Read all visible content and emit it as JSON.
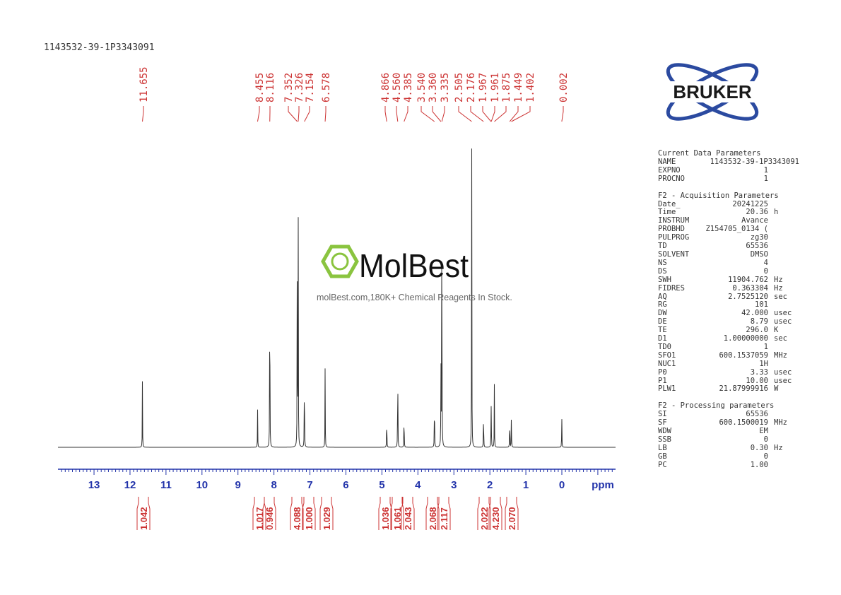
{
  "sample_name": "1143532-39-1P3343091",
  "logo": {
    "brand": "BRUKER",
    "color": "#2b4aa0"
  },
  "watermark": {
    "brand": "MolBest",
    "tagline": "molBest.com,180K+ Chemical Reagents In Stock.",
    "color": "#8ac43f"
  },
  "params": {
    "current": {
      "title": "Current Data Parameters",
      "rows": [
        [
          "NAME",
          "1143532-39-1P3343091",
          ""
        ],
        [
          "EXPNO",
          "1",
          ""
        ],
        [
          "PROCNO",
          "1",
          ""
        ]
      ]
    },
    "acq": {
      "title": "F2 - Acquisition Parameters",
      "rows": [
        [
          "Date_",
          "20241225",
          ""
        ],
        [
          "Time",
          "20.36",
          "h"
        ],
        [
          "INSTRUM",
          "Avance",
          ""
        ],
        [
          "PROBHD",
          "Z154705_0134 (",
          ""
        ],
        [
          "PULPROG",
          "zg30",
          ""
        ],
        [
          "TD",
          "65536",
          ""
        ],
        [
          "SOLVENT",
          "DMSO",
          ""
        ],
        [
          "NS",
          "4",
          ""
        ],
        [
          "DS",
          "0",
          ""
        ],
        [
          "SWH",
          "11904.762",
          "Hz"
        ],
        [
          "FIDRES",
          "0.363304",
          "Hz"
        ],
        [
          "AQ",
          "2.7525120",
          "sec"
        ],
        [
          "RG",
          "101",
          ""
        ],
        [
          "DW",
          "42.000",
          "usec"
        ],
        [
          "DE",
          "8.79",
          "usec"
        ],
        [
          "TE",
          "296.0",
          "K"
        ],
        [
          "D1",
          "1.00000000",
          "sec"
        ],
        [
          "TD0",
          "1",
          ""
        ],
        [
          "SFO1",
          "600.1537059",
          "MHz"
        ],
        [
          "NUC1",
          "1H",
          ""
        ],
        [
          "P0",
          "3.33",
          "usec"
        ],
        [
          "P1",
          "10.00",
          "usec"
        ],
        [
          "PLW1",
          "21.87999916",
          "W"
        ]
      ]
    },
    "proc": {
      "title": "F2 - Processing parameters",
      "rows": [
        [
          "SI",
          "65536",
          ""
        ],
        [
          "SF",
          "600.1500019",
          "MHz"
        ],
        [
          "WDW",
          "EM",
          ""
        ],
        [
          "SSB",
          "0",
          ""
        ],
        [
          "LB",
          "0.30",
          "Hz"
        ],
        [
          "GB",
          "0",
          ""
        ],
        [
          "PC",
          "1.00",
          ""
        ]
      ]
    }
  },
  "chart_data": {
    "type": "line",
    "xlabel": "ppm",
    "xlim": [
      14.0,
      -1.5
    ],
    "x_reversed": true,
    "xticks": [
      13,
      12,
      11,
      10,
      9,
      8,
      7,
      6,
      5,
      4,
      3,
      2,
      1,
      0
    ],
    "line_color": "#333333",
    "label_color": "#cc3333",
    "axis_color": "#2233aa",
    "peaks": [
      {
        "ppm": 11.655,
        "label": "11.655",
        "rel_intensity": 0.21
      },
      {
        "ppm": 8.455,
        "label": "8.455",
        "rel_intensity": 0.12
      },
      {
        "ppm": 8.116,
        "label": "8.116",
        "rel_intensity": 0.69
      },
      {
        "ppm": 7.352,
        "label": "7.352",
        "rel_intensity": 0.73
      },
      {
        "ppm": 7.326,
        "label": "7.326",
        "rel_intensity": 0.73
      },
      {
        "ppm": 7.154,
        "label": "7.154",
        "rel_intensity": 0.3
      },
      {
        "ppm": 6.578,
        "label": "6.578",
        "rel_intensity": 0.26
      },
      {
        "ppm": 4.866,
        "label": "4.866",
        "rel_intensity": 0.12
      },
      {
        "ppm": 4.56,
        "label": "4.560",
        "rel_intensity": 0.32
      },
      {
        "ppm": 4.385,
        "label": "4.385",
        "rel_intensity": 0.13
      },
      {
        "ppm": 3.54,
        "label": "3.540",
        "rel_intensity": 0.2
      },
      {
        "ppm": 3.36,
        "label": "3.360",
        "rel_intensity": 0.28
      },
      {
        "ppm": 3.335,
        "label": "3.335",
        "rel_intensity": 1.0
      },
      {
        "ppm": 2.505,
        "label": "2.505",
        "rel_intensity": 1.0
      },
      {
        "ppm": 2.176,
        "label": "2.176",
        "rel_intensity": 0.14
      },
      {
        "ppm": 1.967,
        "label": "1.967",
        "rel_intensity": 0.1
      },
      {
        "ppm": 1.961,
        "label": "1.961",
        "rel_intensity": 0.1
      },
      {
        "ppm": 1.875,
        "label": "1.875",
        "rel_intensity": 0.2
      },
      {
        "ppm": 1.449,
        "label": "1.449",
        "rel_intensity": 0.11
      },
      {
        "ppm": 1.402,
        "label": "1.402",
        "rel_intensity": 0.11
      },
      {
        "ppm": 0.002,
        "label": "0.002",
        "rel_intensity": 0.11
      }
    ],
    "integrals": [
      {
        "ppm": 11.655,
        "value": "1.042"
      },
      {
        "ppm": 8.455,
        "value": "1.017"
      },
      {
        "ppm": 8.116,
        "value": "0.946"
      },
      {
        "ppm": 7.34,
        "value": "4.088"
      },
      {
        "ppm": 7.154,
        "value": "1.000"
      },
      {
        "ppm": 6.578,
        "value": "1.029"
      },
      {
        "ppm": 4.866,
        "value": "1.036"
      },
      {
        "ppm": 4.56,
        "value": "1.061"
      },
      {
        "ppm": 4.385,
        "value": "2.043"
      },
      {
        "ppm": 3.54,
        "value": "2.068"
      },
      {
        "ppm": 3.36,
        "value": "2.117"
      },
      {
        "ppm": 2.176,
        "value": "2.022"
      },
      {
        "ppm": 1.92,
        "value": "4.230"
      },
      {
        "ppm": 1.42,
        "value": "2.070"
      }
    ]
  }
}
